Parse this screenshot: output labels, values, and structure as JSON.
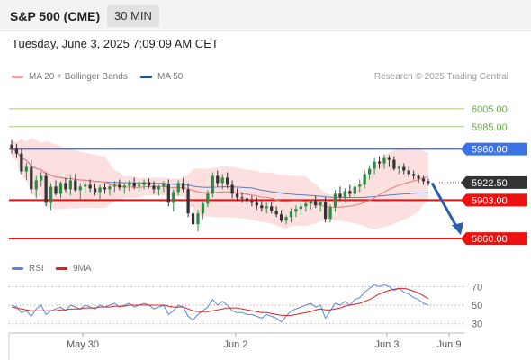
{
  "header": {
    "title": "S&P 500 (CME)",
    "timeframe": "30 MIN"
  },
  "timestamp": "Tuesday, June 3, 2025 7:09:09 AM CET",
  "legend": {
    "ma20_label": "MA 20 + Bollinger Bands",
    "ma50_label": "MA 50",
    "rsi_label": "RSI",
    "rsi_ma_label": "9MA",
    "credit": "Research © 2025 Trading Central"
  },
  "colors": {
    "bull": "#2e8b45",
    "bear": "#333333",
    "band_fill": "#fbd6d6",
    "ma20": "#f07878",
    "ma50": "#5b7ec2",
    "resistance_green": "#a8cf7a",
    "level_blue": "#3b73e6",
    "level_red": "#ee1111",
    "current_bg": "#333333",
    "arrow": "#2b5fa8",
    "rsi_line": "#5b86d8",
    "rsi_ma": "#dd2222"
  },
  "chart_data": [
    {
      "type": "candlestick",
      "title": "S&P 500 (CME) 30 MIN",
      "ylim": [
        5842,
        6030
      ],
      "x_tick_labels": [
        "May 30",
        "Jun 2",
        "Jun 3",
        "Jun 9"
      ],
      "price_levels": [
        {
          "value": 6005.0,
          "label": "6005.00",
          "style": "resistance"
        },
        {
          "value": 5985.0,
          "label": "5985.00",
          "style": "resistance"
        },
        {
          "value": 5960.0,
          "label": "5960.00",
          "style": "pivot"
        },
        {
          "value": 5922.5,
          "label": "5922.50",
          "style": "current"
        },
        {
          "value": 5903.0,
          "label": "5903.00",
          "style": "support"
        },
        {
          "value": 5860.0,
          "label": "5860.00",
          "style": "support"
        }
      ],
      "projection": {
        "from": 5922,
        "to": 5860,
        "direction": "down"
      },
      "ohlc": [
        [
          5965,
          5970,
          5955,
          5960
        ],
        [
          5960,
          5966,
          5950,
          5955
        ],
        [
          5955,
          5960,
          5932,
          5935
        ],
        [
          5935,
          5945,
          5925,
          5940
        ],
        [
          5940,
          5948,
          5910,
          5915
        ],
        [
          5915,
          5930,
          5905,
          5925
        ],
        [
          5925,
          5935,
          5918,
          5930
        ],
        [
          5930,
          5934,
          5896,
          5900
        ],
        [
          5900,
          5922,
          5892,
          5918
        ],
        [
          5918,
          5925,
          5908,
          5910
        ],
        [
          5910,
          5924,
          5905,
          5922
        ],
        [
          5922,
          5928,
          5912,
          5915
        ],
        [
          5915,
          5930,
          5908,
          5925
        ],
        [
          5925,
          5932,
          5912,
          5914
        ],
        [
          5914,
          5922,
          5904,
          5918
        ],
        [
          5918,
          5924,
          5910,
          5920
        ],
        [
          5920,
          5926,
          5912,
          5916
        ],
        [
          5916,
          5922,
          5908,
          5912
        ],
        [
          5912,
          5920,
          5904,
          5917
        ],
        [
          5917,
          5922,
          5910,
          5915
        ],
        [
          5915,
          5921,
          5908,
          5918
        ],
        [
          5918,
          5924,
          5912,
          5920
        ],
        [
          5920,
          5926,
          5914,
          5917
        ],
        [
          5917,
          5922,
          5910,
          5919
        ],
        [
          5919,
          5925,
          5913,
          5922
        ],
        [
          5922,
          5928,
          5915,
          5918
        ],
        [
          5918,
          5924,
          5912,
          5920
        ],
        [
          5920,
          5926,
          5915,
          5923
        ],
        [
          5923,
          5927,
          5916,
          5919
        ],
        [
          5919,
          5924,
          5910,
          5915
        ],
        [
          5915,
          5920,
          5908,
          5918
        ],
        [
          5918,
          5924,
          5912,
          5921
        ],
        [
          5921,
          5926,
          5896,
          5900
        ],
        [
          5900,
          5915,
          5890,
          5912
        ],
        [
          5912,
          5925,
          5908,
          5922
        ],
        [
          5922,
          5928,
          5912,
          5915
        ],
        [
          5915,
          5922,
          5884,
          5888
        ],
        [
          5888,
          5898,
          5872,
          5876
        ],
        [
          5876,
          5892,
          5868,
          5888
        ],
        [
          5888,
          5902,
          5882,
          5899
        ],
        [
          5899,
          5914,
          5895,
          5910
        ],
        [
          5910,
          5934,
          5906,
          5930
        ],
        [
          5930,
          5936,
          5918,
          5922
        ],
        [
          5922,
          5932,
          5915,
          5928
        ],
        [
          5928,
          5934,
          5916,
          5920
        ],
        [
          5920,
          5925,
          5905,
          5910
        ],
        [
          5910,
          5916,
          5902,
          5906
        ],
        [
          5906,
          5912,
          5900,
          5905
        ],
        [
          5905,
          5910,
          5898,
          5902
        ],
        [
          5902,
          5908,
          5896,
          5900
        ],
        [
          5900,
          5906,
          5892,
          5897
        ],
        [
          5897,
          5902,
          5890,
          5894
        ],
        [
          5894,
          5900,
          5888,
          5896
        ],
        [
          5896,
          5901,
          5888,
          5891
        ],
        [
          5891,
          5896,
          5884,
          5887
        ],
        [
          5887,
          5892,
          5878,
          5880
        ],
        [
          5880,
          5886,
          5876,
          5884
        ],
        [
          5884,
          5894,
          5878,
          5890
        ],
        [
          5890,
          5897,
          5884,
          5893
        ],
        [
          5893,
          5899,
          5886,
          5896
        ],
        [
          5896,
          5902,
          5890,
          5899
        ],
        [
          5899,
          5904,
          5892,
          5902
        ],
        [
          5902,
          5908,
          5894,
          5897
        ],
        [
          5897,
          5904,
          5890,
          5901
        ],
        [
          5901,
          5906,
          5878,
          5882
        ],
        [
          5882,
          5898,
          5878,
          5895
        ],
        [
          5895,
          5914,
          5890,
          5910
        ],
        [
          5910,
          5918,
          5902,
          5906
        ],
        [
          5906,
          5916,
          5900,
          5913
        ],
        [
          5913,
          5920,
          5906,
          5910
        ],
        [
          5910,
          5922,
          5905,
          5918
        ],
        [
          5918,
          5926,
          5912,
          5920
        ],
        [
          5920,
          5936,
          5916,
          5932
        ],
        [
          5932,
          5942,
          5926,
          5938
        ],
        [
          5938,
          5950,
          5932,
          5946
        ],
        [
          5946,
          5952,
          5938,
          5944
        ],
        [
          5944,
          5954,
          5938,
          5950
        ],
        [
          5950,
          5953,
          5940,
          5948
        ],
        [
          5948,
          5952,
          5936,
          5938
        ],
        [
          5938,
          5942,
          5932,
          5940
        ],
        [
          5940,
          5944,
          5932,
          5936
        ],
        [
          5936,
          5940,
          5928,
          5932
        ],
        [
          5932,
          5936,
          5926,
          5930
        ],
        [
          5930,
          5932,
          5922,
          5927
        ],
        [
          5927,
          5930,
          5920,
          5924
        ],
        [
          5924,
          5927,
          5919,
          5922
        ]
      ]
    },
    {
      "type": "line",
      "title": "RSI",
      "ylim": [
        22,
        80
      ],
      "y_tick_labels": [
        "70",
        "50",
        "30"
      ],
      "series": [
        {
          "name": "RSI",
          "values": [
            50,
            48,
            42,
            44,
            38,
            46,
            50,
            40,
            44,
            46,
            48,
            44,
            50,
            48,
            46,
            50,
            48,
            46,
            50,
            48,
            50,
            52,
            48,
            50,
            52,
            48,
            50,
            52,
            50,
            46,
            48,
            50,
            40,
            44,
            50,
            48,
            38,
            34,
            40,
            44,
            48,
            56,
            50,
            54,
            50,
            44,
            42,
            42,
            40,
            40,
            38,
            36,
            40,
            38,
            36,
            32,
            38,
            44,
            46,
            48,
            50,
            52,
            48,
            50,
            36,
            44,
            52,
            50,
            54,
            50,
            56,
            58,
            64,
            68,
            72,
            70,
            72,
            70,
            66,
            68,
            64,
            62,
            58,
            56,
            52,
            50
          ]
        },
        {
          "name": "9MA",
          "values": [
            48,
            47,
            46,
            45,
            44,
            44,
            44,
            44,
            44,
            44,
            45,
            45,
            46,
            46,
            46,
            47,
            47,
            47,
            48,
            48,
            48,
            49,
            49,
            49,
            50,
            50,
            50,
            50,
            50,
            50,
            50,
            50,
            49,
            48,
            48,
            48,
            46,
            44,
            43,
            43,
            43,
            44,
            45,
            46,
            47,
            47,
            47,
            46,
            45,
            44,
            43,
            42,
            42,
            41,
            40,
            39,
            39,
            39,
            40,
            41,
            42,
            43,
            45,
            46,
            45,
            45,
            46,
            47,
            49,
            50,
            51,
            52,
            54,
            56,
            59,
            62,
            64,
            66,
            67,
            68,
            68,
            67,
            65,
            63,
            60,
            57
          ]
        }
      ]
    }
  ]
}
